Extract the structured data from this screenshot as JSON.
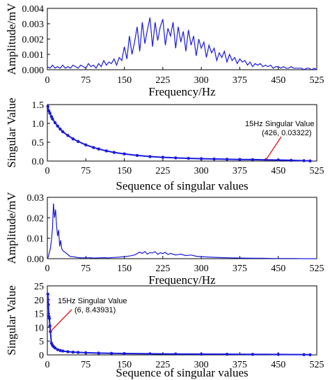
{
  "chart_data": [
    {
      "type": "line",
      "xlabel": "Frequency/Hz",
      "ylabel": "Amplitude/mV",
      "xlim": [
        0,
        525
      ],
      "ylim": [
        0,
        0.004
      ],
      "xticks": [
        "0",
        "75",
        "150",
        "225",
        "300",
        "375",
        "450",
        "525"
      ],
      "yticks": [
        "0.000",
        "0.001",
        "0.002",
        "0.003",
        "0.004"
      ],
      "series": [
        {
          "color": "#1a1adc",
          "x": [
            0,
            5,
            10,
            15,
            20,
            25,
            30,
            35,
            40,
            45,
            50,
            55,
            60,
            65,
            70,
            75,
            80,
            85,
            90,
            95,
            100,
            105,
            110,
            115,
            120,
            125,
            130,
            135,
            140,
            145,
            150,
            155,
            160,
            165,
            170,
            175,
            180,
            185,
            190,
            195,
            200,
            205,
            210,
            215,
            220,
            225,
            230,
            235,
            240,
            245,
            250,
            255,
            260,
            265,
            270,
            275,
            280,
            285,
            290,
            295,
            300,
            305,
            310,
            315,
            320,
            325,
            330,
            335,
            340,
            345,
            350,
            355,
            360,
            365,
            370,
            375,
            380,
            385,
            390,
            395,
            400,
            405,
            410,
            415,
            420,
            425,
            430,
            435,
            440,
            445,
            450,
            455,
            460,
            465,
            470,
            475,
            480,
            485,
            490,
            495,
            500,
            505,
            510,
            515,
            520,
            525
          ],
          "y": [
            0.0002,
            0.0001,
            0.0003,
            0.0001,
            0.0002,
            0.0001,
            0.0003,
            0.0001,
            0.0002,
            0.0001,
            0.0003,
            0.0002,
            0.0001,
            0.0003,
            0.0002,
            0.0001,
            0.0004,
            0.0002,
            0.0003,
            0.0001,
            0.0004,
            0.0002,
            0.0006,
            0.0003,
            0.0005,
            0.0004,
            0.0007,
            0.0003,
            0.0008,
            0.0006,
            0.0015,
            0.0007,
            0.0022,
            0.001,
            0.0018,
            0.0028,
            0.0012,
            0.0031,
            0.0017,
            0.0026,
            0.0034,
            0.0015,
            0.0031,
            0.0019,
            0.0028,
            0.0033,
            0.0016,
            0.0027,
            0.0022,
            0.0031,
            0.0014,
            0.0028,
            0.0018,
            0.0025,
            0.0012,
            0.0026,
            0.0016,
            0.0022,
            0.0009,
            0.002,
            0.0014,
            0.0018,
            0.0008,
            0.0016,
            0.0011,
            0.0014,
            0.0006,
            0.0011,
            0.0008,
            0.0012,
            0.0005,
            0.001,
            0.0006,
            0.0008,
            0.0004,
            0.0007,
            0.0005,
            0.0006,
            0.0003,
            0.0005,
            0.0002,
            0.0004,
            0.0003,
            0.0004,
            0.0002,
            0.0003,
            0.0002,
            0.0003,
            0.0001,
            0.0002,
            0.0002,
            0.0001,
            0.0002,
            0.0001,
            0.0001,
            0.0002,
            0.0001,
            0.0001,
            0.0001,
            0.0001,
            0.0,
            0.0001,
            0.0001,
            0.0,
            0.0001,
            0.0
          ]
        }
      ]
    },
    {
      "type": "scatter",
      "xlabel": "Sequence of singular values",
      "ylabel": "Singular Value",
      "xlim": [
        0,
        525
      ],
      "ylim": [
        0,
        1.5
      ],
      "xticks": [
        "0",
        "75",
        "150",
        "225",
        "300",
        "375",
        "450",
        "525"
      ],
      "yticks": [
        "0.0",
        "0.5",
        "1.0",
        "1.5"
      ],
      "series": [
        {
          "color": "#1a1adc",
          "x": [
            1,
            3,
            5,
            8,
            10,
            15,
            20,
            25,
            30,
            40,
            50,
            60,
            75,
            90,
            100,
            115,
            130,
            150,
            175,
            200,
            225,
            250,
            275,
            300,
            325,
            350,
            375,
            400,
            426,
            450,
            475,
            500,
            512
          ],
          "y": [
            1.45,
            1.33,
            1.27,
            1.18,
            1.12,
            1.02,
            0.93,
            0.85,
            0.78,
            0.68,
            0.59,
            0.52,
            0.43,
            0.36,
            0.32,
            0.27,
            0.23,
            0.19,
            0.15,
            0.12,
            0.1,
            0.085,
            0.072,
            0.063,
            0.055,
            0.048,
            0.043,
            0.038,
            0.03322,
            0.028,
            0.02,
            0.01,
            0.003
          ]
        }
      ],
      "annotation": {
        "title": "15Hz Singular Value",
        "point": "(426, 0.03322)",
        "x": 426,
        "y": 0.03322
      }
    },
    {
      "type": "line",
      "xlabel": "Frequency/Hz",
      "ylabel": "Amplitude/mV",
      "xlim": [
        0,
        525
      ],
      "ylim": [
        0,
        0.03
      ],
      "xticks": [
        "0",
        "75",
        "150",
        "225",
        "300",
        "375",
        "450",
        "525"
      ],
      "yticks": [
        "0.00",
        "0.01",
        "0.02",
        "0.03"
      ],
      "series": [
        {
          "color": "#1a1adc",
          "x": [
            0,
            2,
            4,
            6,
            8,
            10,
            12,
            14,
            16,
            18,
            20,
            22,
            24,
            26,
            28,
            30,
            35,
            40,
            45,
            50,
            60,
            70,
            80,
            90,
            100,
            110,
            120,
            130,
            140,
            150,
            160,
            170,
            175,
            180,
            185,
            190,
            195,
            200,
            205,
            210,
            215,
            220,
            225,
            230,
            235,
            240,
            250,
            260,
            270,
            280,
            290,
            300,
            320,
            340,
            360,
            380,
            400,
            420,
            440,
            460,
            480,
            500,
            525
          ],
          "y": [
            0.0,
            0.001,
            0.003,
            0.005,
            0.009,
            0.015,
            0.027,
            0.02,
            0.024,
            0.016,
            0.011,
            0.014,
            0.006,
            0.009,
            0.005,
            0.004,
            0.003,
            0.002,
            0.001,
            0.001,
            0.0005,
            0.0004,
            0.0005,
            0.0003,
            0.0004,
            0.0005,
            0.0004,
            0.0006,
            0.0008,
            0.001,
            0.0013,
            0.0018,
            0.0025,
            0.0032,
            0.0026,
            0.0035,
            0.0022,
            0.003,
            0.0028,
            0.0034,
            0.0021,
            0.0029,
            0.0025,
            0.0031,
            0.002,
            0.0026,
            0.0018,
            0.0022,
            0.0015,
            0.0018,
            0.0012,
            0.001,
            0.0007,
            0.0005,
            0.0004,
            0.0003,
            0.0002,
            0.0002,
            0.0001,
            0.0001,
            0.0001,
            0.0,
            0.0
          ]
        }
      ]
    },
    {
      "type": "scatter",
      "xlabel": "Sequence of singular values",
      "ylabel": "Singular Value",
      "xlim": [
        0,
        525
      ],
      "ylim": [
        0,
        25
      ],
      "xticks": [
        "0",
        "75",
        "150",
        "225",
        "300",
        "375",
        "450",
        "525"
      ],
      "yticks": [
        "0",
        "5",
        "10",
        "15",
        "20",
        "25"
      ],
      "series": [
        {
          "color": "#1a1adc",
          "x": [
            1,
            2,
            3,
            4,
            5,
            6,
            8,
            10,
            12,
            15,
            20,
            25,
            30,
            40,
            50,
            60,
            75,
            100,
            125,
            150,
            200,
            250,
            300,
            350,
            400,
            450,
            500,
            512
          ],
          "y": [
            22.0,
            18.2,
            14.0,
            13.2,
            10.5,
            8.43931,
            4.2,
            3.5,
            3.0,
            2.5,
            1.9,
            1.6,
            1.4,
            1.15,
            1.0,
            0.9,
            0.78,
            0.65,
            0.56,
            0.5,
            0.4,
            0.33,
            0.28,
            0.24,
            0.2,
            0.16,
            0.1,
            0.04
          ]
        }
      ],
      "annotation": {
        "title": "15Hz Singular Value",
        "point": "(6, 8.43931)",
        "x": 6,
        "y": 8.43931
      }
    }
  ]
}
